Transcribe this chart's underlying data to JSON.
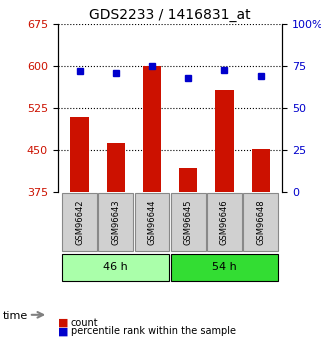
{
  "title": "GDS2233 / 1416831_at",
  "categories": [
    "GSM96642",
    "GSM96643",
    "GSM96644",
    "GSM96645",
    "GSM96646",
    "GSM96648"
  ],
  "bar_values": [
    510,
    462,
    600,
    418,
    558,
    452
  ],
  "percentile_values": [
    72,
    71,
    75,
    68,
    73,
    69
  ],
  "bar_color": "#cc1100",
  "dot_color": "#0000cc",
  "ylim_left": [
    375,
    675
  ],
  "ylim_right": [
    0,
    100
  ],
  "yticks_left": [
    375,
    450,
    525,
    600,
    675
  ],
  "yticks_right": [
    0,
    25,
    50,
    75,
    100
  ],
  "groups": [
    {
      "label": "46 h",
      "indices": [
        0,
        1,
        2
      ],
      "color": "#aaffaa"
    },
    {
      "label": "54 h",
      "indices": [
        3,
        4,
        5
      ],
      "color": "#33dd33"
    }
  ],
  "legend_count_label": "count",
  "legend_pct_label": "percentile rank within the sample",
  "time_label": "time",
  "grid_color": "#000000",
  "background_color": "#ffffff",
  "bar_bottom": 375,
  "bar_width": 0.5
}
